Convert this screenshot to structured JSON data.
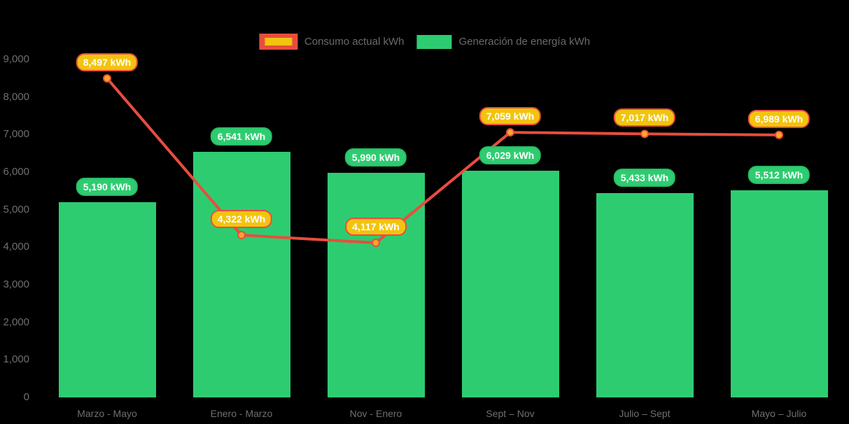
{
  "background_color": "#000000",
  "legend": {
    "position": "top",
    "text_color": "#6b6b6b",
    "items": [
      {
        "label": "Consumo actual kWh",
        "swatch": "red-outline-yellow-fill",
        "outer_color": "#e84d3e",
        "inner_color": "#f2c40f"
      },
      {
        "label": "Generación de energía kWh",
        "swatch": "solid-green",
        "color": "#2ecc71"
      }
    ]
  },
  "chart_data": {
    "type": "bar",
    "subtype": "bar-with-line-overlay",
    "title": "",
    "xlabel": "",
    "ylabel": "",
    "categories": [
      "Marzo - Mayo",
      "Enero - Marzo",
      "Nov - Enero",
      "Sept – Nov",
      "Julio – Sept",
      "Mayo – Julio"
    ],
    "series": [
      {
        "name": "Consumo actual kWh",
        "type": "line",
        "color": "#e84d3e",
        "marker_color": "#ffa726",
        "label_bg": "#f2c40f",
        "label_border": "#e84d3e",
        "values": [
          8497,
          4322,
          4117,
          7059,
          7017,
          6989
        ]
      },
      {
        "name": "Generación de energía kWh",
        "type": "bar",
        "color": "#2ecc71",
        "label_bg": "#2ecc71",
        "values": [
          5190,
          6541,
          5990,
          6029,
          5433,
          5512
        ]
      }
    ],
    "value_suffix": " kWh",
    "ylim": [
      0,
      9000
    ],
    "ytick_step": 1000,
    "ytick_labels": [
      "0",
      "1,000",
      "2,000",
      "3,000",
      "4,000",
      "5,000",
      "6,000",
      "7,000",
      "8,000",
      "9,000"
    ],
    "grid": false,
    "legend_position": "top",
    "axis_text_color": "#6f6f6f"
  }
}
